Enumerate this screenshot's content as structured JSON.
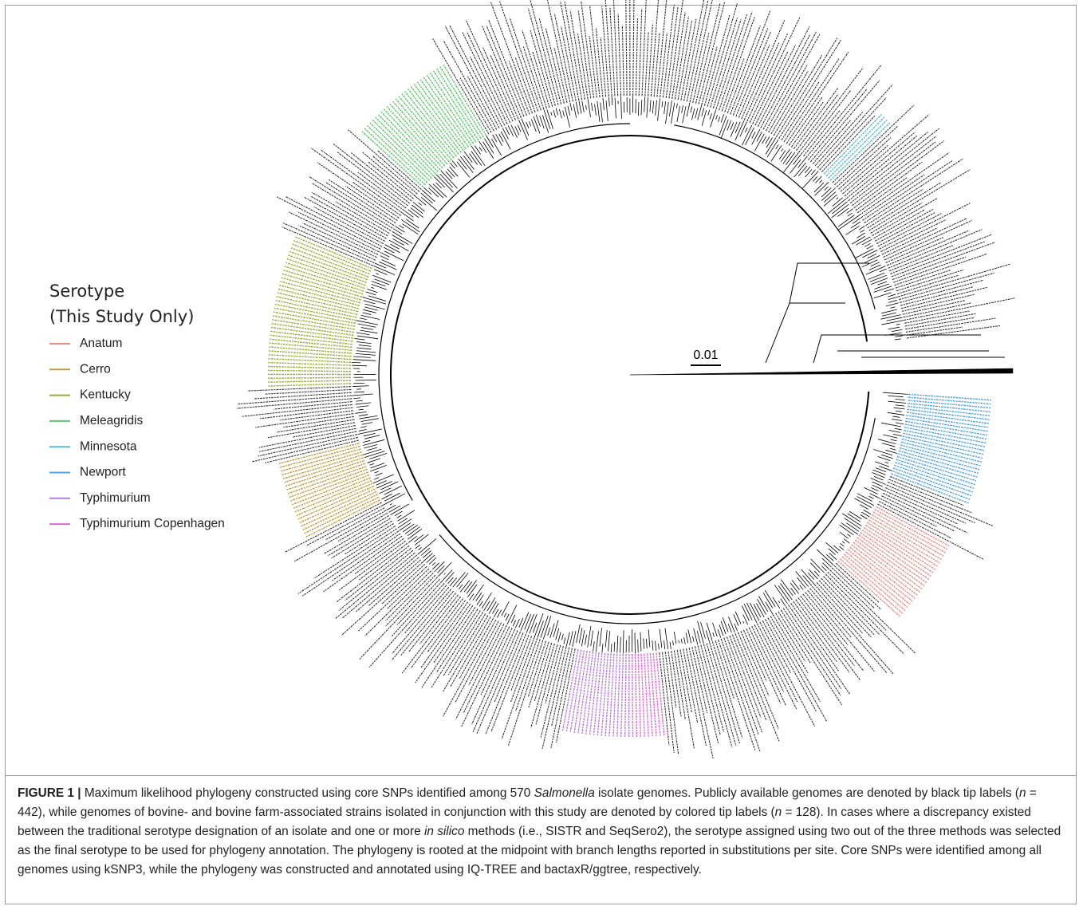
{
  "legend": {
    "title": "Serotype",
    "subtitle": "(This Study Only)",
    "items": [
      {
        "label": "Anatum",
        "color": "#ef8a82"
      },
      {
        "label": "Cerro",
        "color": "#c49a3c"
      },
      {
        "label": "Kentucky",
        "color": "#95b234"
      },
      {
        "label": "Meleagridis",
        "color": "#5cc66a"
      },
      {
        "label": "Minnesota",
        "color": "#58bccb"
      },
      {
        "label": "Newport",
        "color": "#4ea3ea"
      },
      {
        "label": "Typhimurium",
        "color": "#b37be6"
      },
      {
        "label": "Typhimurium Copenhagen",
        "color": "#e266d6"
      }
    ]
  },
  "scale_bar": {
    "label": "0.01"
  },
  "caption": {
    "label": "FIGURE 1 |",
    "runs": [
      {
        "text": "Maximum likelihood phylogeny constructed using core SNPs identified among 570 ",
        "italic": false
      },
      {
        "text": "Salmonella",
        "italic": true
      },
      {
        "text": " isolate genomes. Publicly available genomes are denoted by black tip labels (",
        "italic": false
      },
      {
        "text": "n",
        "italic": true
      },
      {
        "text": " = 442), while genomes of bovine- and bovine farm-associated strains isolated in conjunction with this study are denoted by colored tip labels (",
        "italic": false
      },
      {
        "text": "n",
        "italic": true
      },
      {
        "text": " = 128). In cases where a discrepancy existed between the traditional serotype designation of an isolate and one or more ",
        "italic": false
      },
      {
        "text": "in silico",
        "italic": true
      },
      {
        "text": " methods (i.e., SISTR and SeqSero2), the serotype assigned using two out of the three methods was selected as the final serotype to be used for phylogeny annotation. The phylogeny is rooted at the midpoint with branch lengths reported in substitutions per site. Core SNPs were identified among all genomes using kSNP3, while the phylogeny was constructed and annotated using IQ-TREE and bactaxR/ggtree, respectively.",
        "italic": false
      }
    ]
  }
}
